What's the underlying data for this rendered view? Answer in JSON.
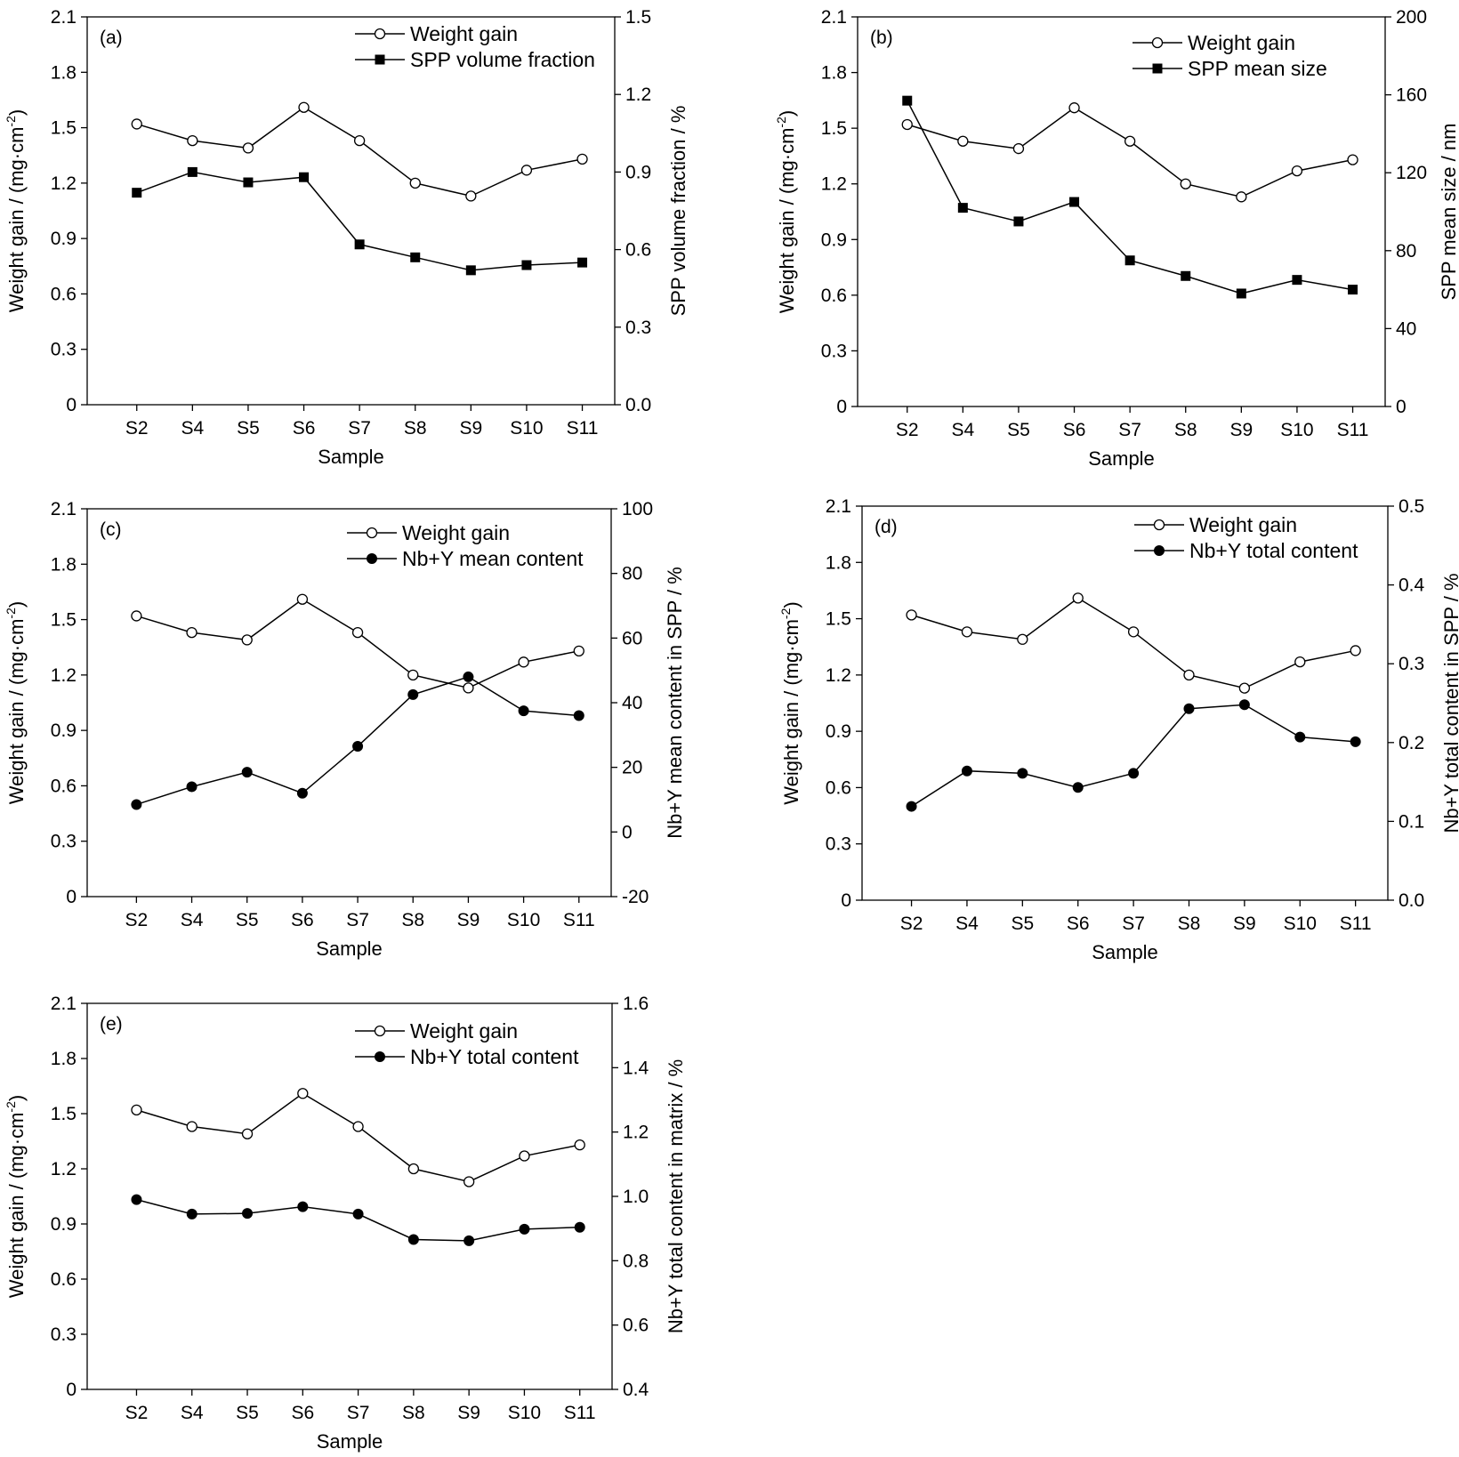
{
  "chart_data": [
    {
      "type": "line",
      "panel_label": "(a)",
      "categories": [
        "S2",
        "S4",
        "S5",
        "S6",
        "S7",
        "S8",
        "S9",
        "S10",
        "S11"
      ],
      "xlabel": "Sample",
      "ylabel_left": "Weight gain / (mg·cm",
      "ylabel_left_sup": "-2",
      "ylabel_left_end": ")",
      "ylabel_right": "SPP volume fraction / %",
      "ylim_left": [
        0,
        2.1
      ],
      "ylim_right": [
        0,
        1.5
      ],
      "yticks_left": [
        "0",
        "0.3",
        "0.6",
        "0.9",
        "1.2",
        "1.5",
        "1.8",
        "2.1"
      ],
      "yticks_right": [
        "0.0",
        "0.3",
        "0.6",
        "0.9",
        "1.2",
        "1.5"
      ],
      "series": [
        {
          "name": "Weight gain",
          "axis": "left",
          "marker": "open-circle",
          "values": [
            1.52,
            1.43,
            1.39,
            1.61,
            1.43,
            1.2,
            1.13,
            1.27,
            1.33
          ]
        },
        {
          "name": "SPP volume fraction",
          "axis": "right",
          "marker": "filled-square",
          "values": [
            0.82,
            0.9,
            0.86,
            0.88,
            0.62,
            0.57,
            0.52,
            0.54,
            0.55
          ]
        }
      ]
    },
    {
      "type": "line",
      "panel_label": "(b)",
      "categories": [
        "S2",
        "S4",
        "S5",
        "S6",
        "S7",
        "S8",
        "S9",
        "S10",
        "S11"
      ],
      "xlabel": "Sample",
      "ylabel_left": "Weight gain / (mg·cm",
      "ylabel_left_sup": "-2",
      "ylabel_left_end": ")",
      "ylabel_right": "SPP mean size / nm",
      "ylim_left": [
        0,
        2.1
      ],
      "ylim_right": [
        0,
        200
      ],
      "yticks_left": [
        "0",
        "0.3",
        "0.6",
        "0.9",
        "1.2",
        "1.5",
        "1.8",
        "2.1"
      ],
      "yticks_right": [
        "0",
        "40",
        "80",
        "120",
        "160",
        "200"
      ],
      "series": [
        {
          "name": "Weight gain",
          "axis": "left",
          "marker": "open-circle",
          "values": [
            1.52,
            1.43,
            1.39,
            1.61,
            1.43,
            1.2,
            1.13,
            1.27,
            1.33
          ]
        },
        {
          "name": "SPP mean size",
          "axis": "right",
          "marker": "filled-square",
          "values": [
            157,
            102,
            95,
            105,
            75,
            67,
            58,
            65,
            60
          ]
        }
      ]
    },
    {
      "type": "line",
      "panel_label": "(c)",
      "categories": [
        "S2",
        "S4",
        "S5",
        "S6",
        "S7",
        "S8",
        "S9",
        "S10",
        "S11"
      ],
      "xlabel": "Sample",
      "ylabel_left": "Weight gain / (mg·cm",
      "ylabel_left_sup": "-2",
      "ylabel_left_end": ")",
      "ylabel_right": "Nb+Y mean content in SPP / %",
      "ylim_left": [
        0,
        2.1
      ],
      "ylim_right": [
        -20,
        100
      ],
      "yticks_left": [
        "0",
        "0.3",
        "0.6",
        "0.9",
        "1.2",
        "1.5",
        "1.8",
        "2.1"
      ],
      "yticks_right": [
        "-20",
        "0",
        "20",
        "40",
        "60",
        "80",
        "100"
      ],
      "series": [
        {
          "name": "Weight gain",
          "axis": "left",
          "marker": "open-circle",
          "values": [
            1.52,
            1.43,
            1.39,
            1.61,
            1.43,
            1.2,
            1.13,
            1.27,
            1.33
          ]
        },
        {
          "name": "Nb+Y mean content",
          "axis": "right",
          "marker": "filled-circle",
          "values": [
            8.5,
            14.0,
            18.5,
            12.0,
            26.5,
            42.5,
            48.0,
            37.5,
            36.0
          ]
        }
      ]
    },
    {
      "type": "line",
      "panel_label": "(d)",
      "categories": [
        "S2",
        "S4",
        "S5",
        "S6",
        "S7",
        "S8",
        "S9",
        "S10",
        "S11"
      ],
      "xlabel": "Sample",
      "ylabel_left": "Weight gain / (mg·cm",
      "ylabel_left_sup": "-2",
      "ylabel_left_end": ")",
      "ylabel_right": "Nb+Y total content in SPP / %",
      "ylim_left": [
        0,
        2.1
      ],
      "ylim_right": [
        0,
        0.5
      ],
      "yticks_left": [
        "0",
        "0.3",
        "0.6",
        "0.9",
        "1.2",
        "1.5",
        "1.8",
        "2.1"
      ],
      "yticks_right": [
        "0.0",
        "0.1",
        "0.2",
        "0.3",
        "0.4",
        "0.5"
      ],
      "series": [
        {
          "name": "Weight gain",
          "axis": "left",
          "marker": "open-circle",
          "values": [
            1.52,
            1.43,
            1.39,
            1.61,
            1.43,
            1.2,
            1.13,
            1.27,
            1.33
          ]
        },
        {
          "name": "Nb+Y total content",
          "axis": "right",
          "marker": "filled-circle",
          "values": [
            0.119,
            0.164,
            0.161,
            0.143,
            0.161,
            0.243,
            0.248,
            0.207,
            0.201
          ]
        }
      ]
    },
    {
      "type": "line",
      "panel_label": "(e)",
      "categories": [
        "S2",
        "S4",
        "S5",
        "S6",
        "S7",
        "S8",
        "S9",
        "S10",
        "S11"
      ],
      "xlabel": "Sample",
      "ylabel_left": "Weight gain / (mg·cm",
      "ylabel_left_sup": "-2",
      "ylabel_left_end": ")",
      "ylabel_right": "Nb+Y total  content in matrix / %",
      "ylim_left": [
        0,
        2.1
      ],
      "ylim_right": [
        0.4,
        1.6
      ],
      "yticks_left": [
        "0",
        "0.3",
        "0.6",
        "0.9",
        "1.2",
        "1.5",
        "1.8",
        "2.1"
      ],
      "yticks_right": [
        "0.4",
        "0.6",
        "0.8",
        "1.0",
        "1.2",
        "1.4",
        "1.6"
      ],
      "series": [
        {
          "name": "Weight gain",
          "axis": "left",
          "marker": "open-circle",
          "values": [
            1.52,
            1.43,
            1.39,
            1.61,
            1.43,
            1.2,
            1.13,
            1.27,
            1.33
          ]
        },
        {
          "name": "Nb+Y total content",
          "axis": "right",
          "marker": "filled-circle",
          "values": [
            0.99,
            0.945,
            0.947,
            0.968,
            0.945,
            0.866,
            0.862,
            0.898,
            0.904
          ]
        }
      ]
    }
  ]
}
